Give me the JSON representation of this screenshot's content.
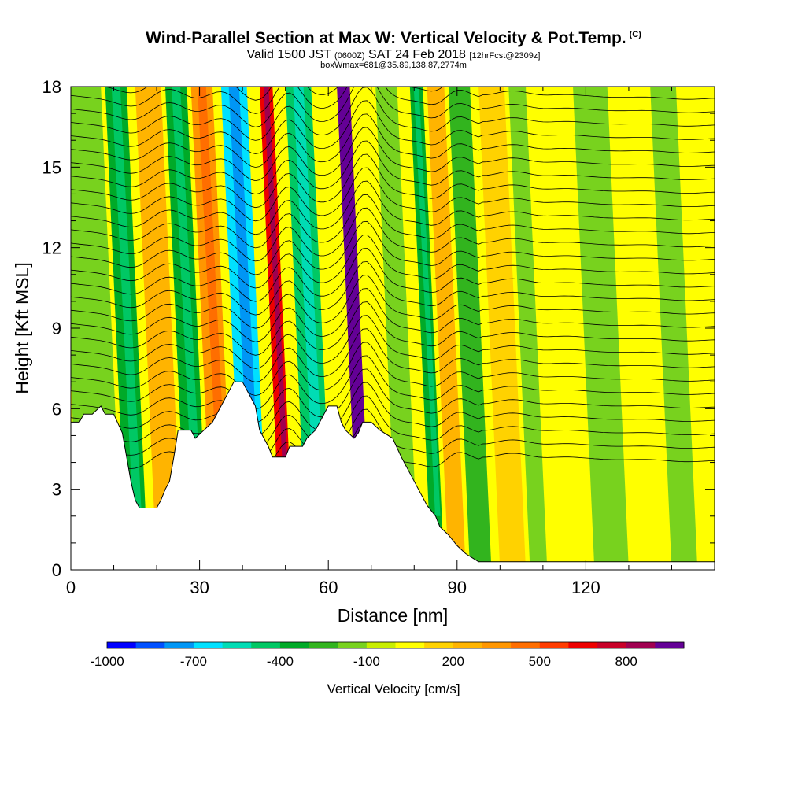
{
  "title": "Wind-Parallel Section at Max W: Vertical Velocity & Pot.Temp.",
  "copyright": "(C)",
  "subtitle": "Valid 1500 JST",
  "subtitle_utc": "(0600Z)",
  "subtitle_date": "SAT 24 Feb 2018",
  "subtitle_fcst": "[12hrFcst@2309z]",
  "subtitle2": "boxWmax=681@35.89,138.87,2774m",
  "chart_data": {
    "type": "heatmap",
    "xlabel": "Distance [nm]",
    "ylabel": "Height [Kft MSL]",
    "xlim": [
      0,
      150
    ],
    "ylim": [
      0,
      18
    ],
    "x_ticks": [
      "0",
      "30",
      "60",
      "90",
      "120"
    ],
    "y_ticks": [
      "0",
      "3",
      "6",
      "9",
      "12",
      "15",
      "18"
    ],
    "terrain_kft": [
      [
        0,
        5.5
      ],
      [
        2,
        5.5
      ],
      [
        3,
        5.8
      ],
      [
        5,
        5.8
      ],
      [
        7,
        6.1
      ],
      [
        8,
        5.8
      ],
      [
        10,
        5.8
      ],
      [
        12,
        5.1
      ],
      [
        13,
        4.2
      ],
      [
        14,
        3.3
      ],
      [
        15,
        2.6
      ],
      [
        16,
        2.3
      ],
      [
        20,
        2.3
      ],
      [
        21,
        2.6
      ],
      [
        22,
        3.0
      ],
      [
        23,
        3.3
      ],
      [
        24,
        4.2
      ],
      [
        25,
        5.2
      ],
      [
        28,
        5.2
      ],
      [
        29,
        4.9
      ],
      [
        31,
        5.2
      ],
      [
        33,
        5.5
      ],
      [
        35,
        6.1
      ],
      [
        37,
        6.7
      ],
      [
        38,
        7.0
      ],
      [
        40,
        7.0
      ],
      [
        41,
        6.7
      ],
      [
        43,
        6.1
      ],
      [
        44,
        5.2
      ],
      [
        46,
        4.6
      ],
      [
        47,
        4.2
      ],
      [
        50,
        4.2
      ],
      [
        51,
        4.6
      ],
      [
        54,
        4.6
      ],
      [
        55,
        4.9
      ],
      [
        57,
        5.2
      ],
      [
        58,
        5.5
      ],
      [
        60,
        6.1
      ],
      [
        62,
        6.1
      ],
      [
        63,
        5.5
      ],
      [
        64,
        5.2
      ],
      [
        66,
        4.9
      ],
      [
        67,
        5.1
      ],
      [
        68,
        5.5
      ],
      [
        70,
        5.5
      ],
      [
        72,
        5.2
      ],
      [
        75,
        4.9
      ],
      [
        77,
        4.2
      ],
      [
        79,
        3.6
      ],
      [
        81,
        3.0
      ],
      [
        83,
        2.4
      ],
      [
        85,
        2.0
      ],
      [
        86,
        1.6
      ],
      [
        88,
        1.3
      ],
      [
        90,
        0.9
      ],
      [
        92,
        0.6
      ],
      [
        95,
        0.3
      ],
      [
        100,
        0.3
      ],
      [
        150,
        0.3
      ]
    ],
    "velocity_bands": [
      {
        "x": 2,
        "width": 10,
        "w": -150
      },
      {
        "x": 13,
        "width": 5,
        "w": -350
      },
      {
        "x": 20,
        "width": 6,
        "w": 250
      },
      {
        "x": 27,
        "width": 5,
        "w": -350
      },
      {
        "x": 33,
        "width": 5,
        "w": 300
      },
      {
        "x": 40,
        "width": 6,
        "w": -650
      },
      {
        "x": 49,
        "width": 3,
        "w": 650
      },
      {
        "x": 55,
        "width": 6,
        "w": -450
      },
      {
        "x": 67,
        "width": 3,
        "w": 900
      },
      {
        "x": 76,
        "width": 5,
        "w": -200
      },
      {
        "x": 84,
        "width": 3,
        "w": -350
      },
      {
        "x": 88,
        "width": 4,
        "w": 250
      },
      {
        "x": 93,
        "width": 5,
        "w": -250
      },
      {
        "x": 100,
        "width": 6,
        "w": 150
      },
      {
        "x": 107,
        "width": 4,
        "w": -150
      },
      {
        "x": 122,
        "width": 8,
        "w": -120
      },
      {
        "x": 140,
        "width": 6,
        "w": -130
      }
    ],
    "colorbar": {
      "label": "Vertical Velocity [cm/s]",
      "levels": [
        -1000,
        -900,
        -800,
        -700,
        -600,
        -500,
        -400,
        -300,
        -200,
        -100,
        0,
        100,
        200,
        300,
        400,
        500,
        600,
        700,
        800,
        900,
        1000
      ],
      "colors": [
        "#0000ff",
        "#0050ff",
        "#0096f5",
        "#00e1ff",
        "#00dcb4",
        "#00c864",
        "#00aa28",
        "#32b41e",
        "#78d21e",
        "#c8ee00",
        "#ffff00",
        "#ffd200",
        "#ffb400",
        "#ff9600",
        "#ff6e00",
        "#ff3c00",
        "#ee0000",
        "#c80028",
        "#a00050",
        "#640096"
      ],
      "tick_labels": [
        "-1000",
        "-700",
        "-400",
        "-100",
        "200",
        "500",
        "800"
      ],
      "tick_values": [
        -1000,
        -700,
        -400,
        -100,
        200,
        500,
        800
      ]
    }
  }
}
